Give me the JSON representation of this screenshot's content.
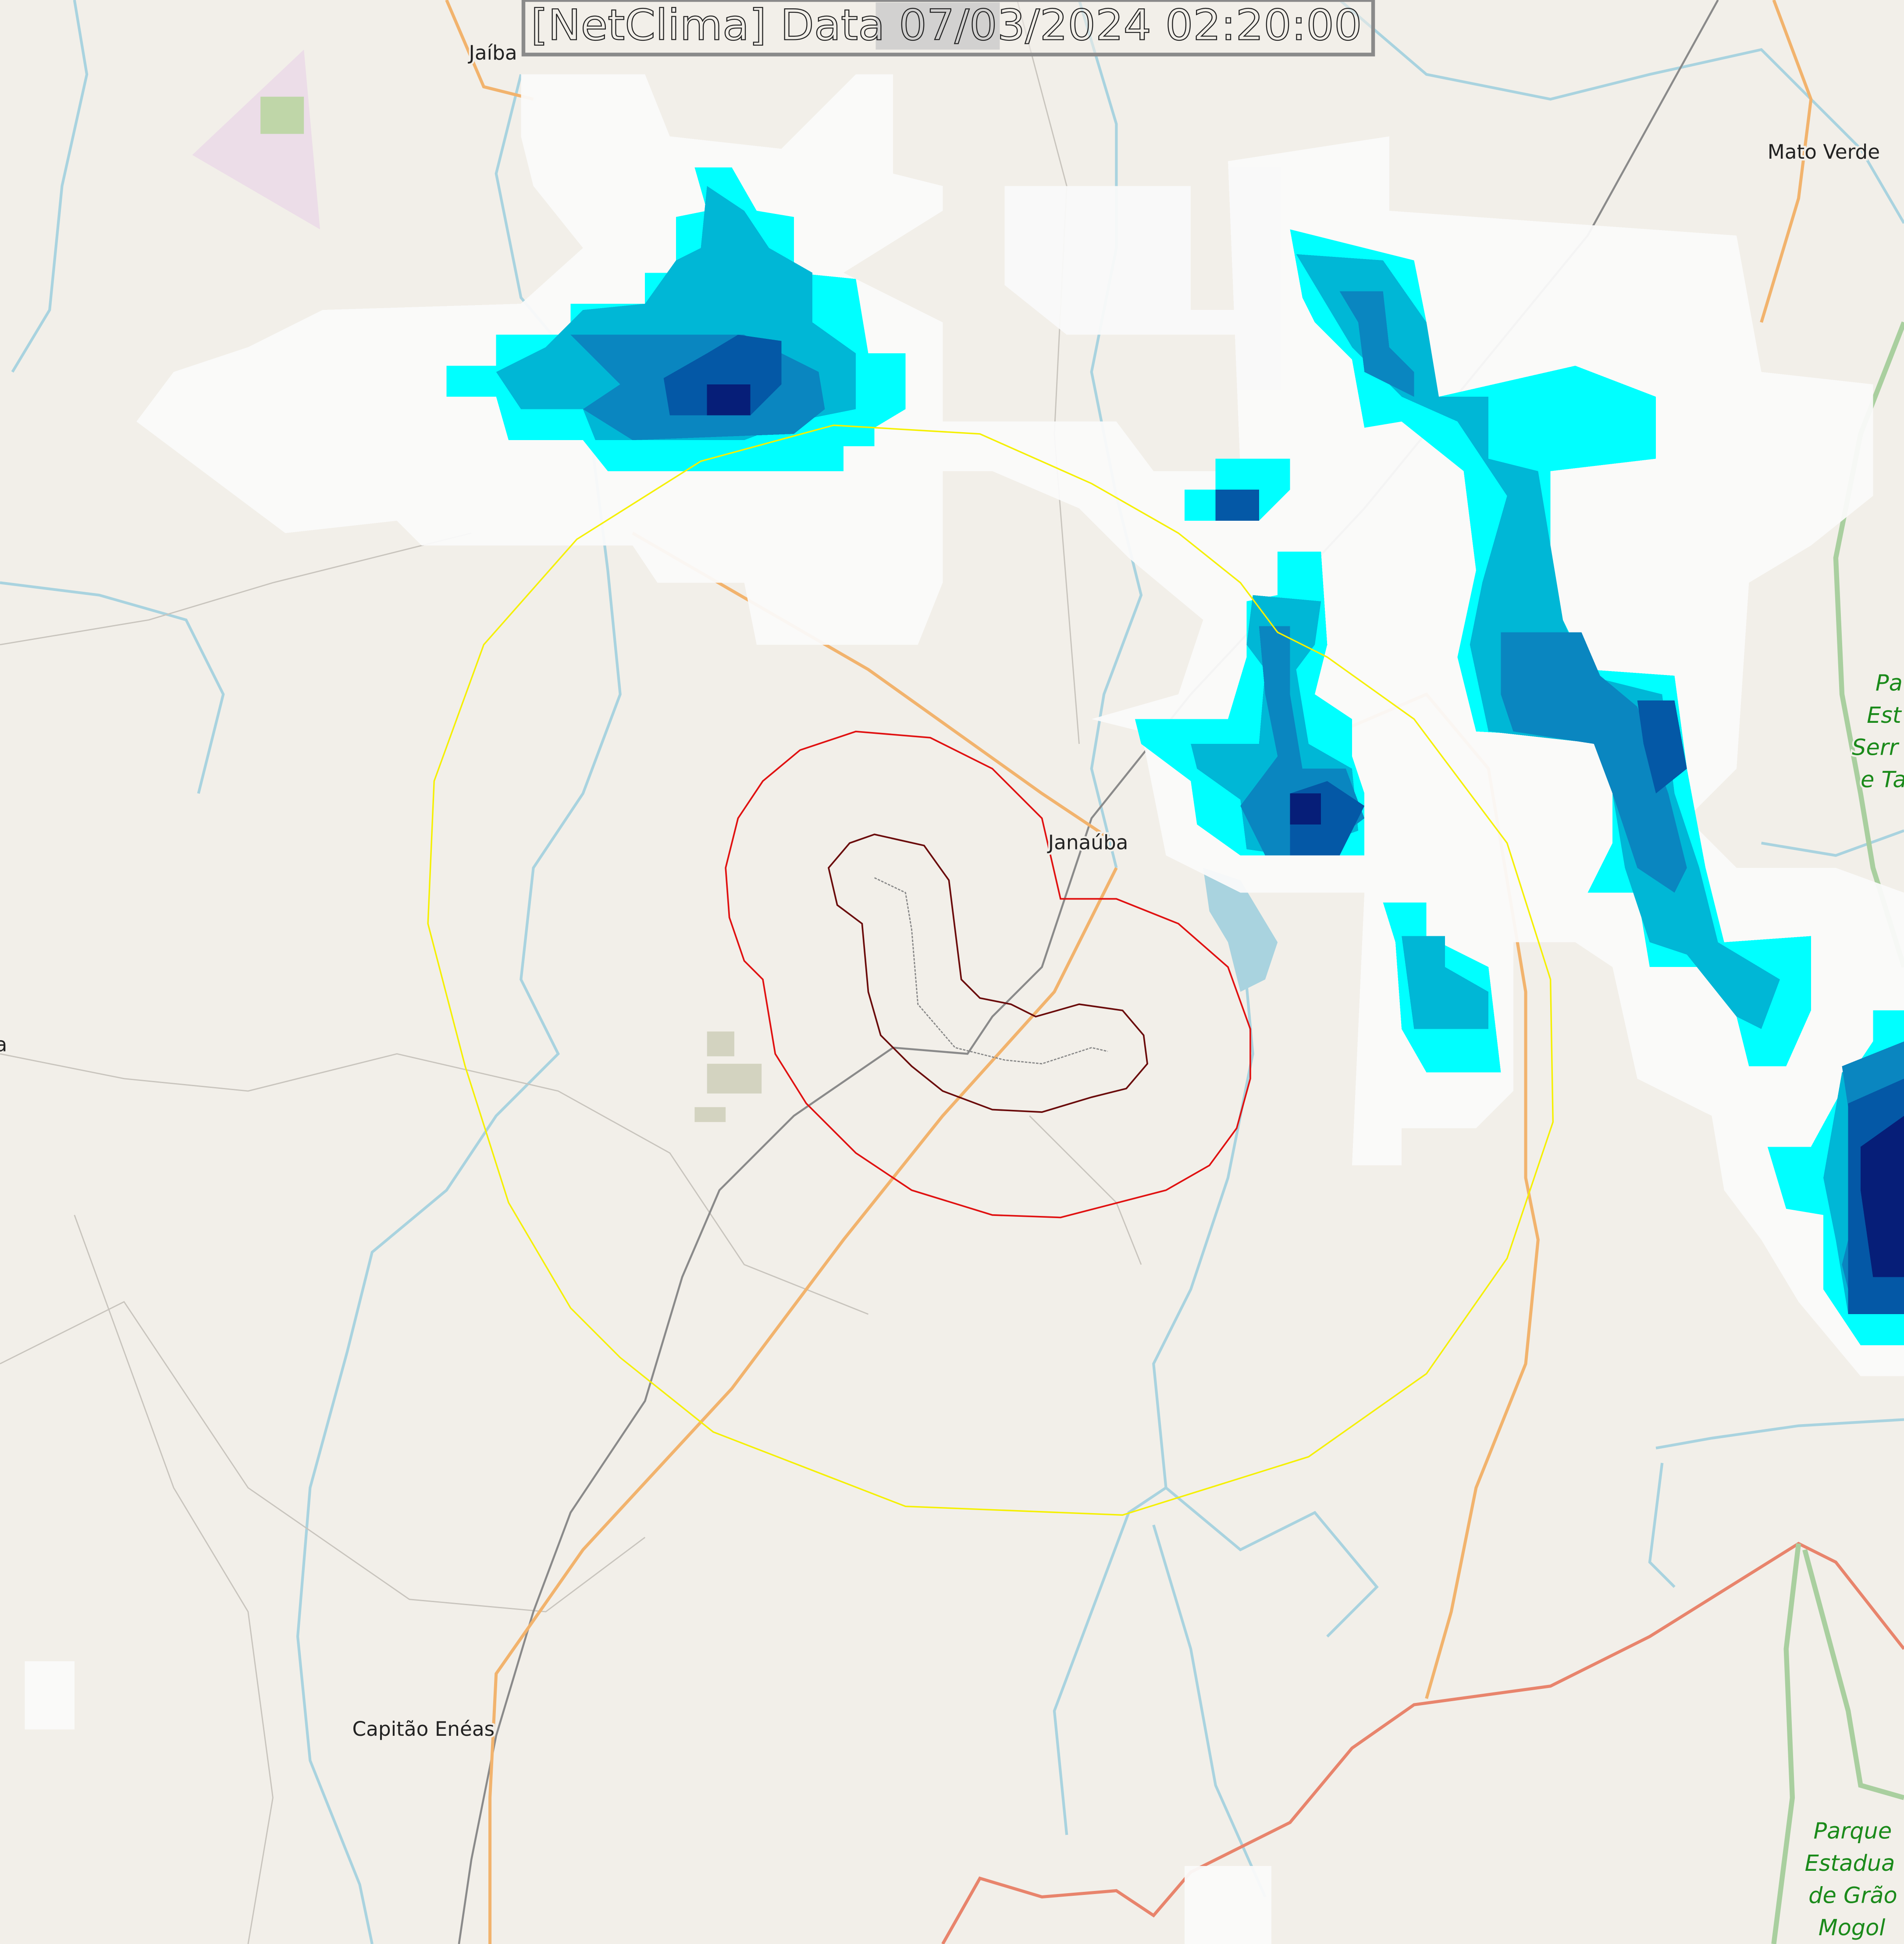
{
  "title": "[NetClima] Data 07/03/2024 02:20:00",
  "places": {
    "jaiba": "Jaíba",
    "mato_verde": "Mato Verde",
    "janauba": "Janaúba",
    "capitao_eneas": "Capitão Enéas",
    "left_edge": "a"
  },
  "parks": {
    "serra_lines": [
      "Pa",
      "Est",
      "Serr",
      "e Ta"
    ],
    "grao_mogol_lines": [
      "Parque",
      "Estadua",
      "de Grão",
      "Mogol"
    ]
  },
  "colors": {
    "land": "#f2efe9",
    "river": "#a9d3df",
    "main_road": "#f2b36d",
    "trunk_road": "#e8846c",
    "railway": "#707070",
    "outer_ring": "#f5f000",
    "middle_ring": "#e01010",
    "inner_ring": "#6a0a0a",
    "park_border": "#a9cf9f",
    "cloud": "#ffffff",
    "radar_light": "#00ffff",
    "radar_mid": "#00b7d6",
    "radar_strong": "#0a86c0",
    "radar_heavy": "#0458a6",
    "radar_extreme": "#061e78"
  }
}
